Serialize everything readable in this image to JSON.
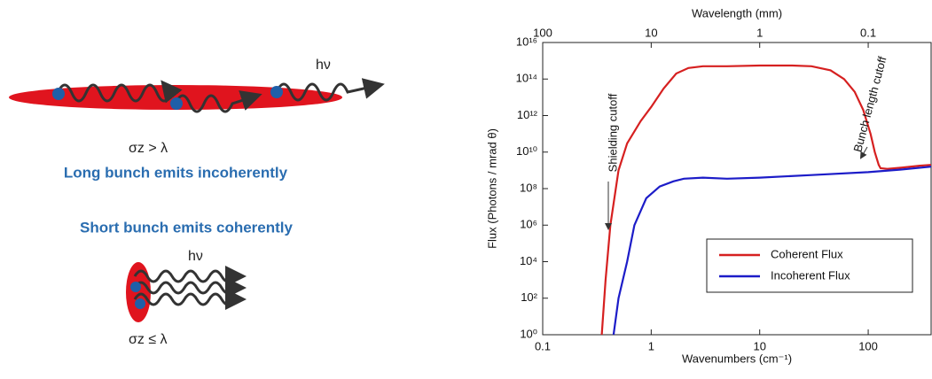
{
  "diagram": {
    "long_label": "hν",
    "long_condition": "σz > λ",
    "long_caption": "Long bunch emits incoherently",
    "short_caption": "Short bunch emits coherently",
    "short_label": "hν",
    "short_condition": "σz ≤ λ"
  },
  "chart_data": {
    "type": "line",
    "x_log": true,
    "y_log": true,
    "xlabel": "Wavenumbers (cm⁻¹)",
    "ylabel": "Flux (Photons / mrad θ)",
    "x2label": "Wavelength (mm)",
    "xlim": [
      0.1,
      380
    ],
    "xticks": [
      0.1,
      1,
      10,
      100
    ],
    "x2ticks": [
      100,
      10,
      1,
      0.1
    ],
    "ylim": [
      1,
      1e+16
    ],
    "yticks": [
      {
        "value": 1,
        "label": "10⁰"
      },
      {
        "value": 100,
        "label": "10²"
      },
      {
        "value": 10000,
        "label": "10⁴"
      },
      {
        "value": 1000000,
        "label": "10⁶"
      },
      {
        "value": 100000000,
        "label": "10⁸"
      },
      {
        "value": 10000000000,
        "label": "10¹⁰"
      },
      {
        "value": 1000000000000,
        "label": "10¹²"
      },
      {
        "value": 100000000000000,
        "label": "10¹⁴"
      },
      {
        "value": 10000000000000000,
        "label": "10¹⁶"
      }
    ],
    "legend": "lower right",
    "annotations": [
      "Shielding cutoff",
      "Bunch length cutoff"
    ],
    "series": [
      {
        "name": "Coherent Flux",
        "color": "#d62020",
        "x": [
          0.35,
          0.38,
          0.42,
          0.5,
          0.6,
          0.8,
          1,
          1.3,
          1.7,
          2.2,
          3,
          5,
          10,
          20,
          30,
          45,
          60,
          75,
          90,
          105,
          115,
          125,
          130,
          150,
          200,
          300,
          380
        ],
        "values": [
          1,
          1000,
          1000000,
          1000000000,
          30000000000,
          500000000000,
          3000000000000,
          30000000000000,
          200000000000000,
          400000000000000,
          500000000000000,
          500000000000000,
          550000000000000,
          550000000000000,
          500000000000000,
          300000000000000,
          100000000000000,
          20000000000000,
          2000000000000,
          100000000000,
          10000000000,
          2000000000,
          1300000000,
          1200000000,
          1400000000,
          1800000000,
          2000000000
        ]
      },
      {
        "name": "Incoherent Flux",
        "color": "#1c1cc8",
        "x": [
          0.45,
          0.5,
          0.6,
          0.7,
          0.9,
          1.2,
          1.6,
          2,
          3,
          5,
          10,
          30,
          100,
          200,
          380
        ],
        "values": [
          1,
          100,
          10000,
          1000000,
          30000000,
          130000000,
          250000000,
          350000000,
          400000000,
          350000000,
          400000000,
          550000000,
          800000000,
          1100000000,
          1600000000
        ]
      }
    ]
  }
}
